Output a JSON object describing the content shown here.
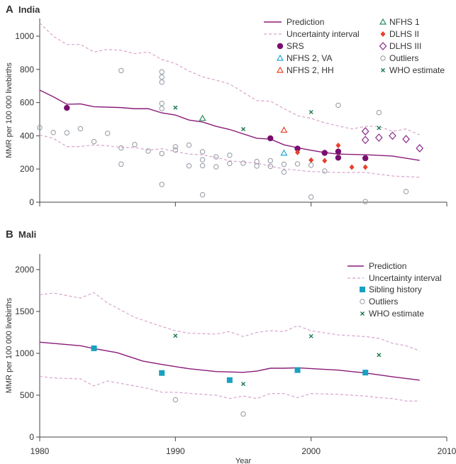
{
  "colors": {
    "prediction": "#8a1a78",
    "uncertainty": "#d7a3cc",
    "srs": "#7a0e6e",
    "nfhs1": "#2a8a5a",
    "nfhs2_va": "#25a8cc",
    "nfhs2_hh": "#e8442a",
    "dlhs2": "#e8402a",
    "dlhs3": "#8a2a8a",
    "outliers": "#9aa0aa",
    "who": "#1a7a4a",
    "sibling": "#1aa0c0",
    "axis": "#444444"
  },
  "chart_data": [
    {
      "type": "line",
      "panel_letter": "A",
      "title": "India",
      "xlabel": "",
      "ylabel": "MMR per 100 000 livebirths",
      "xlim": [
        1980,
        2010
      ],
      "ylim": [
        0,
        1100
      ],
      "yticks": [
        0,
        200,
        400,
        600,
        800,
        1000
      ],
      "xticks": [
        1980,
        1990,
        2000,
        2010
      ],
      "xtick_labels_shown": false,
      "legend_placement": "top-right",
      "legend": [
        "Prediction",
        "Uncertainty interval",
        "SRS",
        "NFHS 2, VA",
        "NFHS 2, HH",
        "NFHS 1",
        "DLHS II",
        "DLHS III",
        "Outliers",
        "WHO estimate"
      ],
      "lines": {
        "prediction": [
          [
            1980,
            675
          ],
          [
            1981,
            635
          ],
          [
            1982,
            590
          ],
          [
            1983,
            592
          ],
          [
            1984,
            575
          ],
          [
            1986,
            570
          ],
          [
            1987,
            563
          ],
          [
            1988,
            563
          ],
          [
            1989,
            538
          ],
          [
            1990,
            525
          ],
          [
            1991,
            495
          ],
          [
            1992,
            483
          ],
          [
            1993,
            457
          ],
          [
            1994,
            438
          ],
          [
            1996,
            385
          ],
          [
            1997,
            380
          ],
          [
            1998,
            346
          ],
          [
            1999,
            328
          ],
          [
            2000,
            313
          ],
          [
            2001,
            299
          ],
          [
            2002,
            290
          ],
          [
            2004,
            286
          ],
          [
            2006,
            278
          ],
          [
            2008,
            252
          ]
        ],
        "upper": [
          [
            1980,
            1080
          ],
          [
            1981,
            1000
          ],
          [
            1982,
            950
          ],
          [
            1983,
            950
          ],
          [
            1984,
            905
          ],
          [
            1985,
            920
          ],
          [
            1986,
            915
          ],
          [
            1987,
            895
          ],
          [
            1988,
            905
          ],
          [
            1989,
            860
          ],
          [
            1990,
            835
          ],
          [
            1991,
            790
          ],
          [
            1992,
            755
          ],
          [
            1993,
            735
          ],
          [
            1994,
            712
          ],
          [
            1995,
            662
          ],
          [
            1996,
            612
          ],
          [
            1997,
            608
          ],
          [
            1999,
            521
          ],
          [
            2000,
            505
          ],
          [
            2001,
            478
          ],
          [
            2003,
            441
          ],
          [
            2004,
            457
          ],
          [
            2005,
            457
          ],
          [
            2006,
            427
          ],
          [
            2007,
            441
          ],
          [
            2008,
            406
          ]
        ],
        "lower": [
          [
            1980,
            405
          ],
          [
            1981,
            385
          ],
          [
            1982,
            335
          ],
          [
            1983,
            335
          ],
          [
            1984,
            345
          ],
          [
            1985,
            340
          ],
          [
            1986,
            330
          ],
          [
            1987,
            330
          ],
          [
            1988,
            315
          ],
          [
            1989,
            322
          ],
          [
            1990,
            305
          ],
          [
            1991,
            290
          ],
          [
            1992,
            285
          ],
          [
            1993,
            270
          ],
          [
            1994,
            249
          ],
          [
            1996,
            235
          ],
          [
            1998,
            200
          ],
          [
            2000,
            185
          ],
          [
            2002,
            179
          ],
          [
            2004,
            179
          ],
          [
            2006,
            158
          ],
          [
            2008,
            150
          ]
        ]
      },
      "points": {
        "srs": [
          [
            1982,
            568
          ],
          [
            1997,
            385
          ],
          [
            1999,
            323
          ],
          [
            2001,
            297
          ],
          [
            2002,
            305
          ],
          [
            2002,
            268
          ],
          [
            2004,
            265
          ]
        ],
        "nfhs1": [
          [
            1992,
            505
          ]
        ],
        "nfhs2_va": [
          [
            1998,
            296
          ]
        ],
        "nfhs2_hh": [
          [
            1998,
            434
          ]
        ],
        "dlhs2": [
          [
            1999,
            300
          ],
          [
            2000,
            253
          ],
          [
            2001,
            250
          ],
          [
            2002,
            342
          ],
          [
            2003,
            211
          ],
          [
            2004,
            211
          ]
        ],
        "dlhs3": [
          [
            2004,
            427
          ],
          [
            2004,
            375
          ],
          [
            2005,
            389
          ],
          [
            2006,
            400
          ],
          [
            2007,
            380
          ],
          [
            2008,
            325
          ]
        ],
        "who": [
          [
            1990,
            570
          ],
          [
            1995,
            440
          ],
          [
            2000,
            543
          ],
          [
            2005,
            447
          ]
        ],
        "outliers": [
          [
            1980,
            449
          ],
          [
            1981,
            420
          ],
          [
            1982,
            418
          ],
          [
            1983,
            443
          ],
          [
            1984,
            365
          ],
          [
            1985,
            415
          ],
          [
            1986,
            793
          ],
          [
            1986,
            327
          ],
          [
            1986,
            229
          ],
          [
            1987,
            347
          ],
          [
            1988,
            308
          ],
          [
            1989,
            785
          ],
          [
            1989,
            754
          ],
          [
            1989,
            723
          ],
          [
            1989,
            595
          ],
          [
            1989,
            564
          ],
          [
            1989,
            293
          ],
          [
            1989,
            107
          ],
          [
            1990,
            334
          ],
          [
            1990,
            314
          ],
          [
            1991,
            344
          ],
          [
            1991,
            219
          ],
          [
            1992,
            304
          ],
          [
            1992,
            256
          ],
          [
            1992,
            220
          ],
          [
            1992,
            45
          ],
          [
            1993,
            273
          ],
          [
            1993,
            213
          ],
          [
            1994,
            283
          ],
          [
            1994,
            233
          ],
          [
            1995,
            235
          ],
          [
            1996,
            245
          ],
          [
            1996,
            218
          ],
          [
            1997,
            250
          ],
          [
            1997,
            216
          ],
          [
            1998,
            228
          ],
          [
            1998,
            181
          ],
          [
            1999,
            231
          ],
          [
            2000,
            223
          ],
          [
            2000,
            31
          ],
          [
            2001,
            188
          ],
          [
            2002,
            584
          ],
          [
            2004,
            4
          ],
          [
            2005,
            540
          ],
          [
            2007,
            64
          ]
        ]
      }
    },
    {
      "type": "line",
      "panel_letter": "B",
      "title": "Mali",
      "xlabel": "Year",
      "ylabel": "MMR per 100 000 livebirths",
      "xlim": [
        1980,
        2010
      ],
      "ylim": [
        0,
        2200
      ],
      "yticks": [
        0,
        500,
        1000,
        1500,
        2000
      ],
      "xticks": [
        1980,
        1990,
        2000,
        2010
      ],
      "xtick_labels_shown": true,
      "legend_placement": "top-right",
      "legend": [
        "Prediction",
        "Uncertainty interval",
        "Sibling history",
        "Outliers",
        "WHO estimate"
      ],
      "lines": {
        "prediction": [
          [
            1980,
            1133
          ],
          [
            1983,
            1091
          ],
          [
            1984,
            1057
          ],
          [
            1985.7,
            1008
          ],
          [
            1987.6,
            907
          ],
          [
            1989,
            867
          ],
          [
            1991,
            816
          ],
          [
            1993,
            782
          ],
          [
            1995,
            773
          ],
          [
            1996,
            788
          ],
          [
            1997,
            822
          ],
          [
            1998,
            822
          ],
          [
            1999,
            827
          ],
          [
            2002,
            799
          ],
          [
            2004,
            765
          ],
          [
            2006,
            720
          ],
          [
            2008,
            680
          ]
        ],
        "upper": [
          [
            1980,
            1700
          ],
          [
            1981,
            1720
          ],
          [
            1983,
            1660
          ],
          [
            1984,
            1725
          ],
          [
            1985,
            1600
          ],
          [
            1987,
            1430
          ],
          [
            1989,
            1320
          ],
          [
            1990,
            1270
          ],
          [
            1991,
            1240
          ],
          [
            1993,
            1230
          ],
          [
            1994,
            1260
          ],
          [
            1995,
            1200
          ],
          [
            1996,
            1250
          ],
          [
            1997,
            1270
          ],
          [
            1998,
            1260
          ],
          [
            1999,
            1330
          ],
          [
            2000,
            1270
          ],
          [
            2002,
            1220
          ],
          [
            2004,
            1200
          ],
          [
            2005,
            1180
          ],
          [
            2006,
            1120
          ],
          [
            2007,
            1090
          ],
          [
            2008,
            1030
          ]
        ],
        "lower": [
          [
            1980,
            725
          ],
          [
            1981,
            705
          ],
          [
            1983,
            695
          ],
          [
            1984,
            610
          ],
          [
            1985,
            670
          ],
          [
            1987,
            610
          ],
          [
            1988,
            580
          ],
          [
            1989,
            535
          ],
          [
            1990,
            535
          ],
          [
            1992,
            510
          ],
          [
            1993,
            500
          ],
          [
            1994,
            460
          ],
          [
            1995,
            490
          ],
          [
            1996,
            460
          ],
          [
            1997,
            520
          ],
          [
            1998,
            520
          ],
          [
            1999,
            470
          ],
          [
            2000,
            520
          ],
          [
            2002,
            510
          ],
          [
            2004,
            490
          ],
          [
            2005,
            470
          ],
          [
            2006,
            460
          ],
          [
            2007,
            430
          ],
          [
            2008,
            430
          ]
        ]
      },
      "points": {
        "sibling": [
          [
            1984,
            1060
          ],
          [
            1989,
            765
          ],
          [
            1994,
            680
          ],
          [
            1999,
            800
          ],
          [
            2004,
            770
          ]
        ],
        "outliers": [
          [
            1990,
            445
          ],
          [
            1995,
            275
          ]
        ],
        "who": [
          [
            1990,
            1210
          ],
          [
            1995,
            635
          ],
          [
            2000,
            1205
          ],
          [
            2005,
            980
          ]
        ]
      }
    }
  ]
}
